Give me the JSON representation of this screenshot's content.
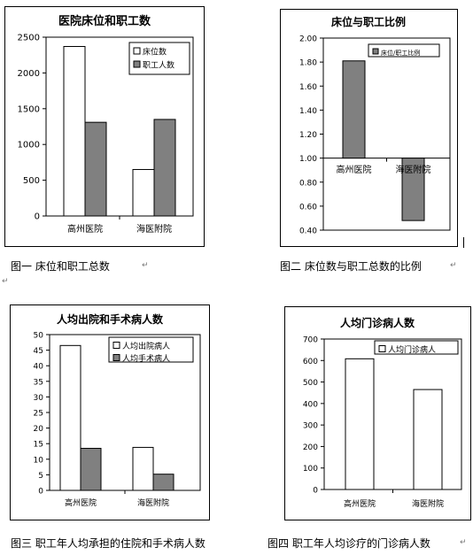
{
  "charts": [
    {
      "type": "bar",
      "title": "医院床位和职工数",
      "categories": [
        "高州医院",
        "海医附院"
      ],
      "series": [
        {
          "name": "床位数",
          "values": [
            2370,
            650
          ],
          "fill": "#ffffff"
        },
        {
          "name": "职工人数",
          "values": [
            1310,
            1350
          ],
          "fill": "#808080"
        }
      ],
      "ylim": [
        0,
        2500
      ],
      "yticks": [
        "0",
        "500",
        "1000",
        "1500",
        "2000",
        "2500"
      ],
      "legend": "top-right",
      "caption": "图一  床位和职工总数"
    },
    {
      "type": "bar",
      "title": "床位与职工比例",
      "categories": [
        "高州医院",
        "海医附院"
      ],
      "series": [
        {
          "name": "床位/职工比例",
          "values": [
            1.81,
            0.48
          ],
          "fill": "#808080"
        }
      ],
      "ylim": [
        0.4,
        2.0
      ],
      "baseline": 1.0,
      "yticks": [
        "0.40",
        "0.60",
        "0.80",
        "1.00",
        "1.20",
        "1.40",
        "1.60",
        "1.80",
        "2.00"
      ],
      "legend": "top-right",
      "caption": "图二  床位数与职工总数的比例"
    },
    {
      "type": "bar",
      "title": "人均出院和手术病人数",
      "categories": [
        "高州医院",
        "海医附院"
      ],
      "series": [
        {
          "name": "人均出院病人",
          "values": [
            46.5,
            13.8
          ],
          "fill": "#ffffff"
        },
        {
          "name": "人均手术病人",
          "values": [
            13.5,
            5.2
          ],
          "fill": "#808080"
        }
      ],
      "ylim": [
        0,
        50
      ],
      "yticks": [
        "0",
        "5",
        "10",
        "15",
        "20",
        "25",
        "30",
        "35",
        "40",
        "45",
        "50"
      ],
      "legend": "top-right",
      "caption": "图三  职工年人均承担的住院和手术病人数"
    },
    {
      "type": "bar",
      "title": "人均门诊病人数",
      "categories": [
        "高州医院",
        "海医附院"
      ],
      "series": [
        {
          "name": "人均门诊病人",
          "values": [
            608,
            465
          ],
          "fill": "#ffffff"
        }
      ],
      "ylim": [
        0,
        700
      ],
      "yticks": [
        "0",
        "100",
        "200",
        "300",
        "400",
        "500",
        "600",
        "700"
      ],
      "legend": "top-right",
      "caption": "图四  职工年人均诊疗的门诊病人数"
    }
  ],
  "marks": {
    "paragraph": "↵"
  }
}
